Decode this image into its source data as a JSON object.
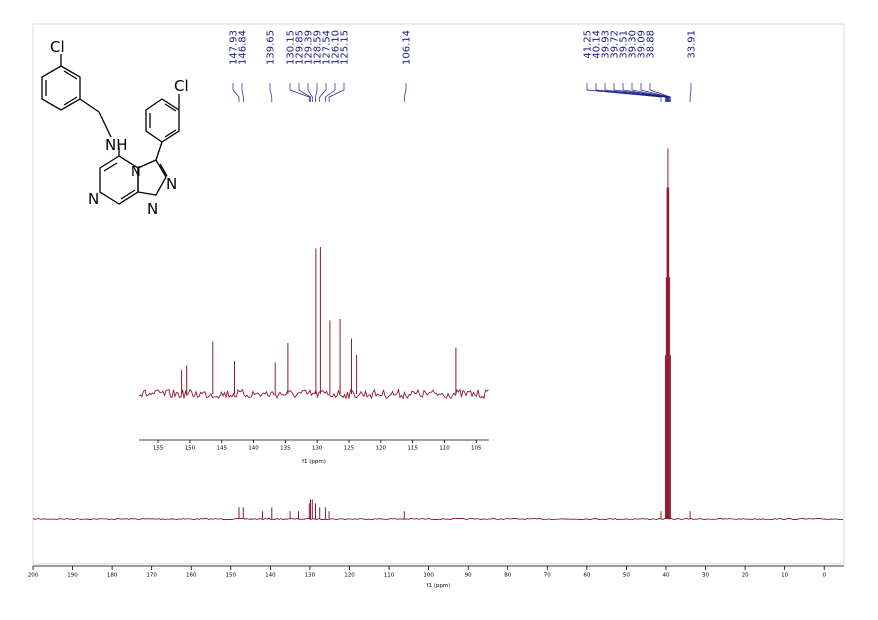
{
  "chart_data": [
    {
      "type": "line",
      "title": "",
      "xlabel": "f1 (ppm)",
      "xlim": [
        200,
        -5
      ],
      "x_reversed": true,
      "xticks": [
        200,
        190,
        180,
        170,
        160,
        150,
        140,
        130,
        120,
        110,
        100,
        90,
        80,
        70,
        60,
        50,
        40,
        30,
        20,
        10,
        0
      ],
      "grid": false,
      "colors": {
        "spectrum": "#8b1a2b",
        "labels": "#1a1a8c",
        "axis": "#000000"
      },
      "peak_labels": [
        "147.93",
        "146.84",
        "139.65",
        "130.15",
        "129.85",
        "129.39",
        "128.59",
        "127.54",
        "126.10",
        "125.15",
        "106.14",
        "41.25",
        "40.14",
        "39.93",
        "39.72",
        "39.51",
        "39.30",
        "39.09",
        "38.88",
        "33.91"
      ],
      "peaks": [
        {
          "x": 147.93,
          "y": 0.03
        },
        {
          "x": 146.84,
          "y": 0.03
        },
        {
          "x": 142.0,
          "y": 0.02
        },
        {
          "x": 139.65,
          "y": 0.03
        },
        {
          "x": 135.0,
          "y": 0.02
        },
        {
          "x": 132.9,
          "y": 0.02
        },
        {
          "x": 130.15,
          "y": 0.04
        },
        {
          "x": 129.85,
          "y": 0.05
        },
        {
          "x": 129.39,
          "y": 0.05
        },
        {
          "x": 128.59,
          "y": 0.04
        },
        {
          "x": 127.54,
          "y": 0.03
        },
        {
          "x": 126.1,
          "y": 0.03
        },
        {
          "x": 125.15,
          "y": 0.02
        },
        {
          "x": 106.14,
          "y": 0.02
        },
        {
          "x": 41.25,
          "y": 0.02
        },
        {
          "x": 40.14,
          "y": 0.42
        },
        {
          "x": 39.93,
          "y": 0.62
        },
        {
          "x": 39.72,
          "y": 0.85
        },
        {
          "x": 39.51,
          "y": 0.95
        },
        {
          "x": 39.3,
          "y": 0.85
        },
        {
          "x": 39.09,
          "y": 0.62
        },
        {
          "x": 38.88,
          "y": 0.42
        },
        {
          "x": 33.91,
          "y": 0.02
        }
      ]
    },
    {
      "type": "line",
      "title": "",
      "xlabel": "f1 (ppm)",
      "xlim": [
        158,
        103
      ],
      "x_reversed": true,
      "xticks": [
        155,
        150,
        145,
        140,
        135,
        130,
        125,
        120,
        115,
        110,
        105
      ],
      "peaks": [
        {
          "x": 151.3,
          "y": 0.16
        },
        {
          "x": 150.5,
          "y": 0.19
        },
        {
          "x": 146.4,
          "y": 0.35
        },
        {
          "x": 143.0,
          "y": 0.22
        },
        {
          "x": 136.6,
          "y": 0.21
        },
        {
          "x": 134.6,
          "y": 0.34
        },
        {
          "x": 130.2,
          "y": 0.97
        },
        {
          "x": 129.5,
          "y": 0.98
        },
        {
          "x": 128.0,
          "y": 0.49
        },
        {
          "x": 126.4,
          "y": 0.5
        },
        {
          "x": 124.6,
          "y": 0.37
        },
        {
          "x": 123.8,
          "y": 0.26
        },
        {
          "x": 108.2,
          "y": 0.31
        }
      ]
    }
  ],
  "structure": {
    "atoms": [
      "Cl",
      "Cl",
      "NH",
      "N",
      "N",
      "N",
      "N"
    ]
  }
}
